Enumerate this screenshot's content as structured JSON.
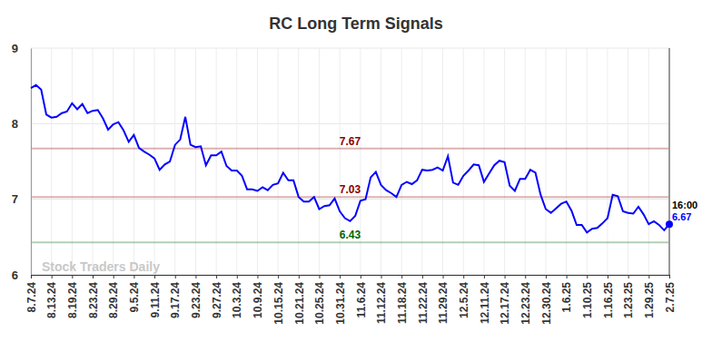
{
  "chart_data": {
    "type": "line",
    "title": "RC Long Term Signals",
    "watermark": "Stock Traders Daily",
    "last_label": "16:00",
    "categories": [
      "8.7.24",
      null,
      null,
      null,
      "8.13.24",
      null,
      null,
      null,
      "8.19.24",
      null,
      null,
      null,
      "8.23.24",
      null,
      null,
      null,
      "8.29.24",
      null,
      null,
      null,
      "9.5.24",
      null,
      null,
      null,
      "9.11.24",
      null,
      null,
      null,
      "9.17.24",
      null,
      null,
      null,
      "9.23.24",
      null,
      null,
      null,
      "9.27.24",
      null,
      null,
      null,
      "10.3.24",
      null,
      null,
      null,
      "10.9.24",
      null,
      null,
      null,
      "10.15.24",
      null,
      null,
      null,
      "10.21.24",
      null,
      null,
      null,
      "10.25.24",
      null,
      null,
      null,
      "10.31.24",
      null,
      null,
      null,
      "11.6.24",
      null,
      null,
      null,
      "11.12.24",
      null,
      null,
      null,
      "11.18.24",
      null,
      null,
      null,
      "11.22.24",
      null,
      null,
      null,
      "11.29.24",
      null,
      null,
      null,
      "12.5.24",
      null,
      null,
      null,
      "12.11.24",
      null,
      null,
      null,
      "12.17.24",
      null,
      null,
      null,
      "12.23.24",
      null,
      null,
      null,
      "12.30.24",
      null,
      null,
      null,
      "1.6.25",
      null,
      null,
      null,
      "1.10.25",
      null,
      null,
      null,
      "1.16.25",
      null,
      null,
      null,
      "1.23.25",
      null,
      null,
      null,
      "1.29.25",
      null,
      null,
      null,
      "2.7.25"
    ],
    "series": [
      {
        "color": "#0000ff",
        "values": [
          8.47,
          8.51,
          8.45,
          8.12,
          8.08,
          8.09,
          8.14,
          8.16,
          8.27,
          8.19,
          8.26,
          8.14,
          8.17,
          8.18,
          8.07,
          7.92,
          7.99,
          8.02,
          7.91,
          7.76,
          7.85,
          7.68,
          7.63,
          7.59,
          7.54,
          7.39,
          7.46,
          7.5,
          7.72,
          7.79,
          8.09,
          7.72,
          7.69,
          7.7,
          7.45,
          7.58,
          7.58,
          7.63,
          7.44,
          7.38,
          7.38,
          7.31,
          7.13,
          7.13,
          7.11,
          7.16,
          7.12,
          7.19,
          7.21,
          7.35,
          7.25,
          7.25,
          7.03,
          6.97,
          6.97,
          7.03,
          6.87,
          6.91,
          6.92,
          7.01,
          6.84,
          6.75,
          6.71,
          6.78,
          6.98,
          7.0,
          7.29,
          7.36,
          7.19,
          7.12,
          7.08,
          7.03,
          7.19,
          7.23,
          7.2,
          7.25,
          7.39,
          7.38,
          7.39,
          7.42,
          7.38,
          7.57,
          7.22,
          7.19,
          7.31,
          7.38,
          7.46,
          7.45,
          7.23,
          7.34,
          7.45,
          7.51,
          7.49,
          7.18,
          7.11,
          7.27,
          7.27,
          7.39,
          7.35,
          7.06,
          6.87,
          6.82,
          6.88,
          6.94,
          6.97,
          6.85,
          6.66,
          6.66,
          6.56,
          6.61,
          6.62,
          6.68,
          6.75,
          7.06,
          7.04,
          6.84,
          6.82,
          6.81,
          6.9,
          6.8,
          6.67,
          6.71,
          6.66,
          6.59,
          6.67
        ]
      }
    ],
    "reference_lines": [
      {
        "value": 7.67,
        "color": "#8b0000"
      },
      {
        "value": 7.03,
        "color": "#8b0000"
      },
      {
        "value": 6.43,
        "color": "#006400"
      }
    ],
    "ylim": [
      6,
      9
    ],
    "yticks": [
      6,
      7,
      8,
      9
    ],
    "grid": true
  }
}
